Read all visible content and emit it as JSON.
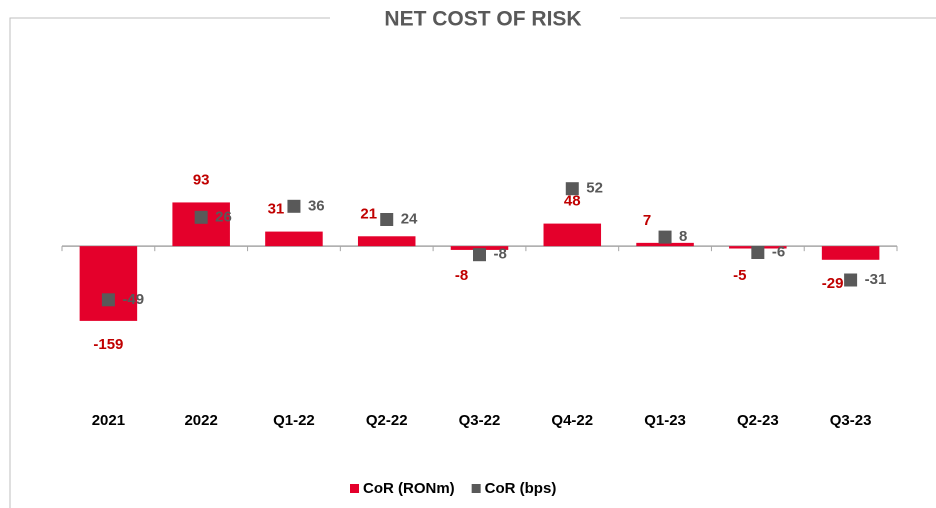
{
  "chart_data": {
    "type": "bar_marker",
    "title": "NET COST OF RISK",
    "categories": [
      "2021",
      "2022",
      "Q1-22",
      "Q2-22",
      "Q3-22",
      "Q4-22",
      "Q1-23",
      "Q2-23",
      "Q3-23"
    ],
    "series": [
      {
        "name": "CoR (RONm)",
        "color": "#e4002b",
        "values": [
          -159,
          93,
          31,
          21,
          -8,
          48,
          7,
          -5,
          -29
        ]
      },
      {
        "name": "CoR (bps)",
        "color": "#595959",
        "axis": "y2",
        "values": [
          -49,
          26,
          36,
          24,
          -8,
          52,
          8,
          -6,
          -31
        ]
      }
    ],
    "ylim": [
      -306,
      396
    ],
    "y2lim": [
      -131,
      169
    ],
    "legend": "bottom"
  }
}
